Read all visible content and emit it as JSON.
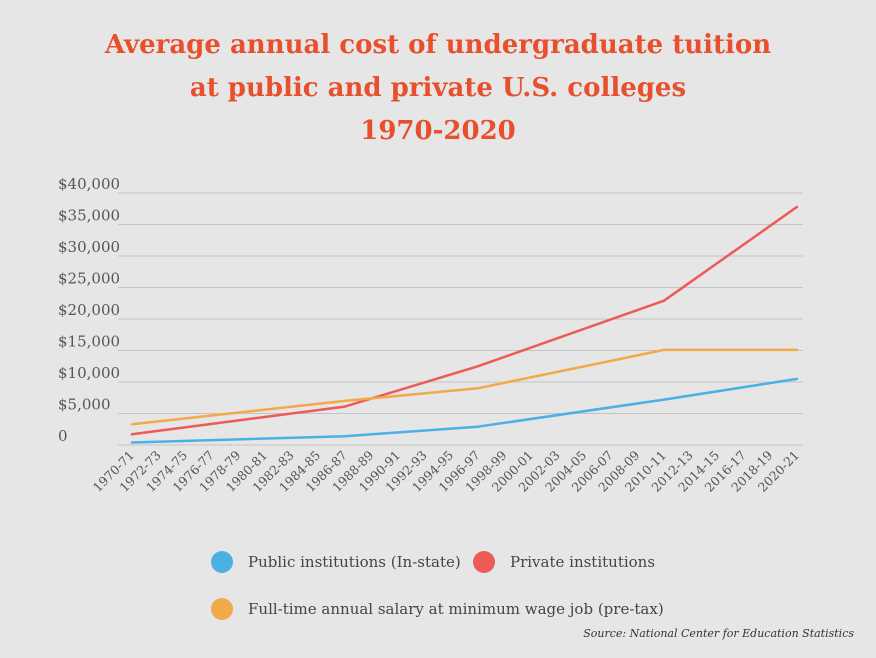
{
  "title": {
    "line1": "Average annual cost of undergraduate tuition",
    "line2": "at public and private U.S. colleges",
    "line3": "1970-2020"
  },
  "source": "Source: National Center for Education Statistics",
  "colors": {
    "background": "#e6e6e6",
    "title": "#e8502d",
    "public": "#4ab0e6",
    "private": "#ec5b55",
    "salary": "#f2a94a",
    "grid": "#c4c4c4"
  },
  "chart_data": {
    "type": "line",
    "title": "Average annual cost of undergraduate tuition at public and private U.S. colleges 1970-2020",
    "xlabel": "",
    "ylabel": "",
    "ylim": [
      0,
      40000
    ],
    "grid": true,
    "legend_position": "bottom",
    "y_ticks": [
      {
        "value": 0,
        "label": "0"
      },
      {
        "value": 5000,
        "label": "$5,000"
      },
      {
        "value": 10000,
        "label": "$10,000"
      },
      {
        "value": 15000,
        "label": "$15,000"
      },
      {
        "value": 20000,
        "label": "$20,000"
      },
      {
        "value": 25000,
        "label": "$25,000"
      },
      {
        "value": 30000,
        "label": "$30,000"
      },
      {
        "value": 35000,
        "label": "$35,000"
      },
      {
        "value": 40000,
        "label": "$40,000"
      }
    ],
    "categories": [
      "1970-71",
      "1972-73",
      "1974-75",
      "1976-77",
      "1978-79",
      "1980-81",
      "1982-83",
      "1984-85",
      "1986-87",
      "1988-89",
      "1990-91",
      "1992-93",
      "1994-95",
      "1996-97",
      "1998-99",
      "2000-01",
      "2002-03",
      "2004-05",
      "2006-07",
      "2008-09",
      "2010-11",
      "2012-13",
      "2014-15",
      "2016-17",
      "2018-19",
      "2020-21"
    ],
    "series": [
      {
        "name": "Public institutions (In-state)",
        "color": "#4ab0e6",
        "points": [
          {
            "x": "1970-71",
            "y": 400
          },
          {
            "x": "1986-87",
            "y": 1400
          },
          {
            "x": "1996-97",
            "y": 2900
          },
          {
            "x": "2010-11",
            "y": 7200
          },
          {
            "x": "2020-21",
            "y": 10500
          }
        ]
      },
      {
        "name": "Private institutions",
        "color": "#ec5b55",
        "points": [
          {
            "x": "1970-71",
            "y": 1700
          },
          {
            "x": "1986-87",
            "y": 6100
          },
          {
            "x": "1996-97",
            "y": 12500
          },
          {
            "x": "2010-11",
            "y": 22900
          },
          {
            "x": "2020-21",
            "y": 37800
          }
        ]
      },
      {
        "name": "Full-time annual salary at minimum wage job (pre-tax)",
        "color": "#f2a94a",
        "points": [
          {
            "x": "1970-71",
            "y": 3300
          },
          {
            "x": "1986-87",
            "y": 7000
          },
          {
            "x": "1996-97",
            "y": 9000
          },
          {
            "x": "2010-11",
            "y": 15100
          },
          {
            "x": "2020-21",
            "y": 15100
          }
        ]
      }
    ]
  }
}
